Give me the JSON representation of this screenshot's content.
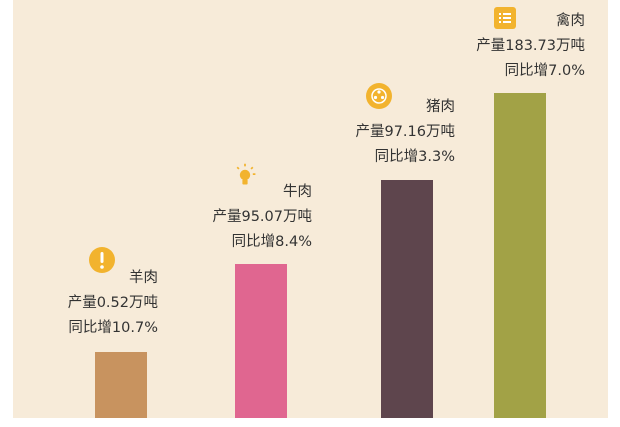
{
  "colors": {
    "background": "#f7ebd9",
    "accent_icon": "#f2b32e"
  },
  "chart_data": {
    "type": "bar",
    "categories": [
      "羊肉",
      "牛肉",
      "猪肉",
      "禽肉"
    ],
    "values": [
      0.52,
      95.07,
      97.16,
      183.73
    ],
    "unit": "万吨",
    "growth_percent": [
      10.7,
      8.4,
      3.3,
      7.0
    ],
    "colors": [
      "#c8935f",
      "#e06690",
      "#5e454d",
      "#a2a246"
    ],
    "icons": [
      "exclamation-icon",
      "lightbulb-icon",
      "film-reel-icon",
      "list-icon"
    ],
    "labels": [
      {
        "name": "羊肉",
        "production": "产量0.52万吨",
        "growth": "同比增10.7%"
      },
      {
        "name": "牛肉",
        "production": "产量95.07万吨",
        "growth": "同比增8.4%"
      },
      {
        "name": "猪肉",
        "production": "产量97.16万吨",
        "growth": "同比增3.3%"
      },
      {
        "name": "禽肉",
        "production": "产量183.73万吨",
        "growth": "同比增7.0%"
      }
    ],
    "grid": false,
    "legend": "none"
  }
}
